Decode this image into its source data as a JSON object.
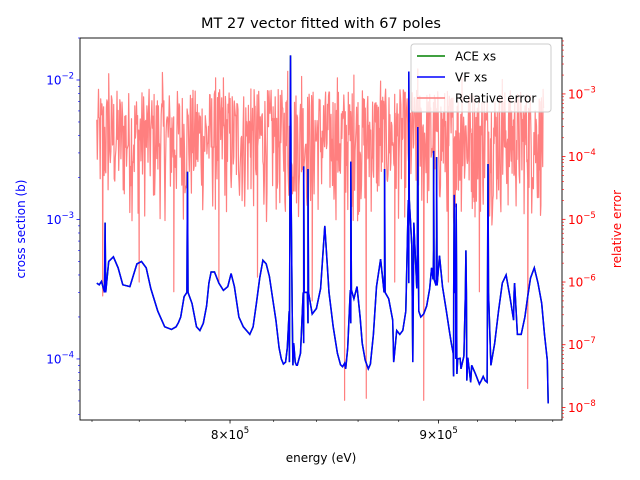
{
  "chart_data": {
    "type": "line",
    "title": "MT 27 vector fitted with 67 poles",
    "xlabel": "energy (eV)",
    "ylabel_left": "cross section (b)",
    "ylabel_right": "relative error",
    "x_scale": "log",
    "y_scale_left": "log",
    "y_scale_right": "log",
    "xlim": [
      735000,
      965000
    ],
    "ylim_left": [
      3.65e-05,
      0.02
    ],
    "ylim_right": [
      6.3e-09,
      0.0078
    ],
    "x_ticks": [
      {
        "value": 800000,
        "mant": "8",
        "exp": "5"
      },
      {
        "value": 900000,
        "mant": "9",
        "exp": "5"
      }
    ],
    "y_ticks_left": [
      {
        "value": 0.0001,
        "exp": "−4"
      },
      {
        "value": 0.001,
        "exp": "−3"
      },
      {
        "value": 0.01,
        "exp": "−2"
      }
    ],
    "y_ticks_right": [
      {
        "value": 1e-08,
        "exp": "−8"
      },
      {
        "value": 1e-07,
        "exp": "−7"
      },
      {
        "value": 1e-06,
        "exp": "−6"
      },
      {
        "value": 1e-05,
        "exp": "−5"
      },
      {
        "value": 0.0001,
        "exp": "−4"
      },
      {
        "value": 0.001,
        "exp": "−3"
      }
    ],
    "tick_base": "10",
    "grid": false,
    "legend_position": "top-right",
    "colors": {
      "ace": "#008000",
      "vf": "#0000ff",
      "err": "#ff7f7f",
      "left_axis": "#0000ff",
      "right_axis": "#ff0000"
    },
    "series": [
      {
        "name": "ACE xs",
        "axis": "left",
        "color": "#008000",
        "x": [
          742000,
          743000,
          744000,
          745500,
          747000,
          749000,
          751000,
          753000,
          756000,
          759000,
          761000,
          763000,
          765000,
          768000,
          771000,
          774000,
          776000,
          777000,
          778000,
          779500,
          781000,
          783000,
          785000,
          786500,
          788000,
          789500,
          790500,
          791500,
          793000,
          795000,
          797000,
          799000,
          800500,
          802000,
          804000,
          806000,
          807500,
          809000,
          810500,
          812000,
          813500,
          815000,
          816500,
          818000,
          819500,
          821000,
          822500,
          823500,
          824500,
          825500,
          826300,
          827200,
          828000,
          828600,
          829300,
          830000,
          831000,
          832500,
          834000,
          836000,
          838000,
          840000,
          842000,
          844000,
          846000,
          848000,
          850000,
          851500,
          852500,
          853500,
          855000,
          856500,
          858000,
          859500,
          861000,
          862000,
          863500,
          865000,
          866000,
          867500,
          869000,
          871000,
          873000,
          875000,
          877000,
          879000,
          880500,
          882000,
          883500,
          885000,
          886500,
          887500,
          889000,
          890000,
          891000,
          892500,
          894000,
          895500,
          896500,
          897500,
          899000,
          900500,
          902000,
          904000,
          905500,
          906500,
          907500,
          908800,
          909800,
          911000,
          913000,
          915000,
          917000,
          919000,
          921000,
          922000,
          923000,
          924000,
          925000,
          927000,
          929000,
          931000,
          933000,
          935000,
          937000,
          939000,
          941000,
          943000,
          945000,
          946500,
          948000,
          950000,
          952000,
          954000,
          955500,
          957000
        ],
        "values": [
          0.00035,
          0.00034,
          0.00036,
          0.00095,
          0.0005,
          0.00054,
          0.00045,
          0.00034,
          0.00033,
          0.00048,
          0.0005,
          0.00045,
          0.00032,
          0.00022,
          0.00017,
          0.000163,
          0.00017,
          0.000182,
          0.0002,
          0.00028,
          0.0022,
          0.00025,
          0.00017,
          0.00016,
          0.00018,
          0.00024,
          0.00035,
          0.00042,
          0.00042,
          0.00035,
          0.00031,
          0.00033,
          0.00041,
          0.00033,
          0.0002,
          0.00017,
          0.00016,
          0.00015,
          0.00017,
          0.00025,
          0.00038,
          0.00051,
          0.00048,
          0.00039,
          0.00027,
          0.00019,
          0.00012,
          0.0001,
          9.2e-05,
          9.5e-05,
          0.00012,
          0.00022,
          0.0041,
          0.00022,
          0.00013,
          9.5e-05,
          9e-05,
          0.00011,
          0.00013,
          0.00018,
          0.00021,
          0.00023,
          0.00032,
          0.0009,
          0.0003,
          0.00017,
          0.00011,
          9.1e-05,
          8.8e-05,
          9.3e-05,
          0.00012,
          0.00018,
          0.00027,
          0.00033,
          0.0002,
          0.00013,
          9.8e-05,
          8.5e-05,
          9.2e-05,
          0.00015,
          0.00033,
          0.00052,
          0.00041,
          0.00027,
          0.00019,
          0.00016,
          0.00015,
          0.00016,
          0.00022,
          0.00035,
          0.00065,
          0.00095,
          0.00032,
          0.00022,
          0.0002,
          0.00021,
          0.00024,
          0.00032,
          0.00045,
          0.0006,
          0.00075,
          0.00055,
          0.00033,
          0.00022,
          0.00016,
          0.00013,
          0.00011,
          0.0001,
          0.0001,
          0.000101,
          0.000105,
          0.000102,
          9e-05,
          7.8e-05,
          6.6e-05,
          7e-05,
          7.5e-05,
          7e-05,
          6.8e-05,
          9e-05,
          0.00013,
          0.00022,
          0.00035,
          0.0004,
          0.00028,
          0.00019,
          0.00015,
          0.00015,
          0.0002,
          0.00028,
          0.00038,
          0.00045,
          0.00035,
          0.00025,
          0.00015,
          9.8e-05
        ],
        "spikes": [
          [
            745500,
            0.00095
          ],
          [
            781000,
            0.0022
          ],
          [
            827800,
            0.015
          ],
          [
            834000,
            0.0024
          ],
          [
            836000,
            0.0023
          ],
          [
            856500,
            0.0026
          ],
          [
            873000,
            0.0023
          ],
          [
            885000,
            0.0115
          ],
          [
            889500,
            0.0046
          ],
          [
            897500,
            0.0031
          ],
          [
            899000,
            0.0028
          ],
          [
            908000,
            0.0015
          ],
          [
            909000,
            0.0013
          ],
          [
            914000,
            0.0006
          ],
          [
            925500,
            0.0025
          ],
          [
            939500,
            0.00035
          ]
        ],
        "dips": [
          [
            827300,
            9.5e-05
          ],
          [
            828900,
            9e-05
          ],
          [
            830600,
            9e-05
          ],
          [
            854000,
            8.5e-05
          ],
          [
            877500,
            9.5e-05
          ],
          [
            887000,
            9.5e-05
          ],
          [
            907700,
            7.5e-05
          ],
          [
            909400,
            7.8e-05
          ],
          [
            911500,
            8.5e-05
          ],
          [
            914500,
            7e-05
          ],
          [
            916500,
            6.8e-05
          ],
          [
            957500,
            4.8e-05
          ]
        ]
      },
      {
        "name": "VF xs",
        "axis": "left",
        "color": "#0000ff",
        "note_same_as": "ACE xs"
      },
      {
        "name": "Relative error",
        "axis": "right",
        "color": "#ff7f7f",
        "x_range": [
          742000,
          955000
        ],
        "n_points": 900,
        "band_low": 5e-07,
        "band_high": 0.0012,
        "deep_dips": [
          [
            744500,
            6e-07
          ],
          [
            760000,
            1e-06
          ],
          [
            775000,
            7e-07
          ],
          [
            795000,
            1e-06
          ],
          [
            812500,
            1.2e-06
          ],
          [
            838000,
            5e-07
          ],
          [
            853500,
            1.3e-08
          ],
          [
            864000,
            1.4e-08
          ],
          [
            878000,
            1e-06
          ],
          [
            892500,
            1.3e-08
          ],
          [
            905000,
            1e-06
          ],
          [
            921000,
            7e-07
          ],
          [
            946500,
            2e-08
          ]
        ],
        "high_spikes": [
          [
            747000,
            0.0021
          ],
          [
            770000,
            0.0022
          ],
          [
            793500,
            0.0018
          ],
          [
            797000,
            0.0018
          ],
          [
            809500,
            0.0012
          ],
          [
            826500,
            0.0023
          ],
          [
            833000,
            0.0019
          ],
          [
            850000,
            0.0018
          ],
          [
            858000,
            0.002
          ],
          [
            871000,
            0.0016
          ],
          [
            889500,
            0.0025
          ],
          [
            912000,
            0.0018
          ],
          [
            933000,
            0.0017
          ]
        ]
      }
    ]
  }
}
